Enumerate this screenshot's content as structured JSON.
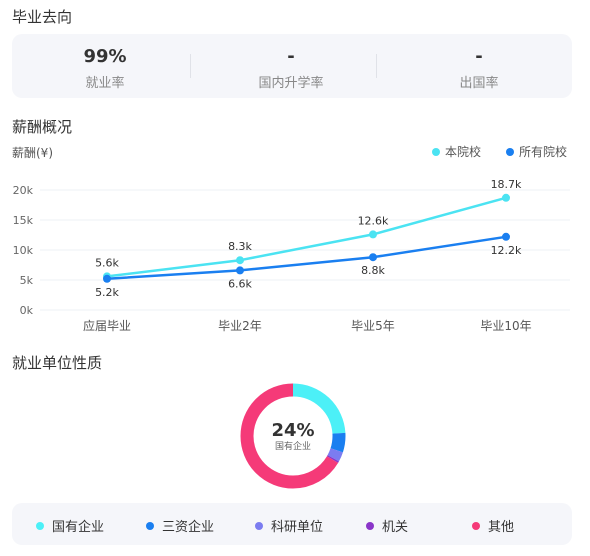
{
  "section1": {
    "title": "毕业去向",
    "stats": [
      {
        "value": "99%",
        "label": "就业率"
      },
      {
        "value": "-",
        "label": "国内升学率"
      },
      {
        "value": "-",
        "label": "出国率"
      }
    ]
  },
  "section2": {
    "title": "薪酬概况",
    "axis_title": "薪酬(¥)",
    "legend": [
      {
        "name": "本院校",
        "color": "#4be3f2"
      },
      {
        "name": "所有院校",
        "color": "#1a7ff0"
      }
    ]
  },
  "chart_data": {
    "type": "line",
    "categories": [
      "应届毕业",
      "毕业2年",
      "毕业5年",
      "毕业10年"
    ],
    "ylim": [
      0,
      20
    ],
    "yticks": [
      "0k",
      "5k",
      "10k",
      "15k",
      "20k"
    ],
    "series": [
      {
        "name": "本院校",
        "color": "#4be3f2",
        "values": [
          5.6,
          8.3,
          12.6,
          18.7
        ],
        "labels": [
          "5.6k",
          "8.3k",
          "12.6k",
          "18.7k"
        ]
      },
      {
        "name": "所有院校",
        "color": "#1a7ff0",
        "values": [
          5.2,
          6.6,
          8.8,
          12.2
        ],
        "labels": [
          "5.2k",
          "6.6k",
          "8.8k",
          "12.2k"
        ]
      }
    ],
    "grid": true
  },
  "section3": {
    "title": "就业单位性质",
    "center_value": "24%",
    "center_label": "国有企业",
    "items": [
      {
        "name": "国有企业",
        "color": "#4cf0f7",
        "share": 0.24
      },
      {
        "name": "三资企业",
        "color": "#1a7ff0",
        "share": 0.06
      },
      {
        "name": "科研单位",
        "color": "#7b7cf0",
        "share": 0.03
      },
      {
        "name": "机关",
        "color": "#8a35c9",
        "share": 0.005
      },
      {
        "name": "其他",
        "color": "#f53a78",
        "share": 0.665
      }
    ]
  }
}
